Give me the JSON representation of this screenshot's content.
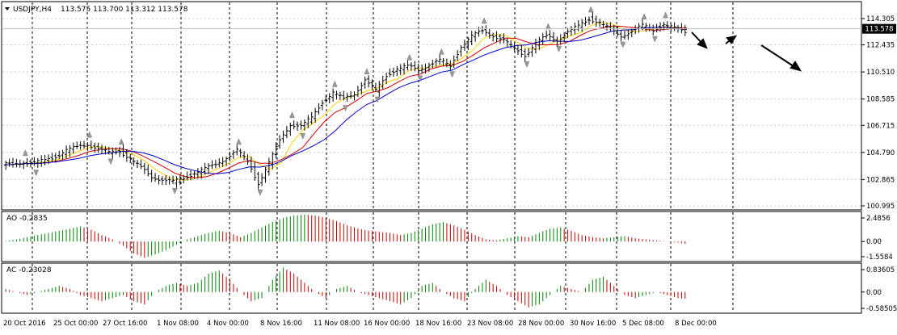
{
  "header": {
    "symbol_label": "USDJPY,H4",
    "ohlc_label": "113.575 113.700 113.312 113.578"
  },
  "panels": {
    "price": {
      "current_price_label": "113.578",
      "current_price": 113.578
    },
    "ao": {
      "label": "AO -0.2835",
      "value": -0.2835,
      "tick_labels": [
        "2.4856",
        "0.00",
        "-1.5584"
      ]
    },
    "ac": {
      "label": "AC -0.23028",
      "value": -0.23028,
      "tick_labels": [
        "0.83605",
        "0.00",
        "-0.58505"
      ]
    }
  },
  "colors": {
    "up_bar": "#008000",
    "down_bar": "#c00000",
    "ma_fast": "#ffd000",
    "ma_mid": "#d00000",
    "ma_slow": "#0000cc",
    "fractal": "#999999"
  },
  "chart_data": [
    {
      "type": "line",
      "title": "USDJPY,H4",
      "x_tick_labels": [
        "20 Oct 2016",
        "25 Oct 00:00",
        "27 Oct 16:00",
        "1 Nov 08:00",
        "4 Nov 00:00",
        "8 Nov 16:00",
        "11 Nov 08:00",
        "16 Nov 00:00",
        "18 Nov 16:00",
        "23 Nov 08:00",
        "28 Nov 00:00",
        "30 Nov 16:00",
        "5 Dec 08:00",
        "8 Dec 00:00"
      ],
      "y_tick_labels": [
        "114.305",
        "112.435",
        "110.510",
        "108.585",
        "106.715",
        "104.790",
        "102.865",
        "100.995"
      ],
      "ylim": [
        100.995,
        114.305
      ],
      "series": [
        {
          "name": "USDJPY",
          "values": [
            103.9,
            104.0,
            104.1,
            104.0,
            104.3,
            104.5,
            104.9,
            105.2,
            105.4,
            105.0,
            104.8,
            104.9,
            104.3,
            103.7,
            103.1,
            102.8,
            102.7,
            103.0,
            103.3,
            103.6,
            104.0,
            104.4,
            104.9,
            104.2,
            102.6,
            104.0,
            105.7,
            106.8,
            106.6,
            107.3,
            108.4,
            109.0,
            108.6,
            109.0,
            109.9,
            109.2,
            110.3,
            110.7,
            110.9,
            110.7,
            111.0,
            111.3,
            111.0,
            112.3,
            113.0,
            113.5,
            113.1,
            112.7,
            112.2,
            111.7,
            112.5,
            113.1,
            112.8,
            113.3,
            113.8,
            114.3,
            114.0,
            113.5,
            113.1,
            113.4,
            113.8,
            113.5,
            113.9,
            113.6,
            113.4
          ]
        }
      ]
    },
    {
      "type": "bar",
      "title": "AO -0.2835",
      "ylim": [
        -1.5584,
        2.4856
      ],
      "values": [
        0.05,
        0.2,
        0.4,
        0.6,
        0.8,
        1.0,
        1.2,
        1.4,
        1.1,
        0.6,
        0.2,
        -0.4,
        -1.1,
        -1.5,
        -1.2,
        -0.8,
        -0.3,
        0.2,
        0.5,
        0.8,
        1.0,
        0.8,
        0.4,
        0.8,
        1.3,
        1.8,
        2.2,
        2.4,
        2.5,
        2.4,
        2.2,
        1.9,
        1.5,
        1.2,
        1.0,
        0.9,
        0.8,
        0.6,
        0.8,
        1.2,
        1.6,
        1.8,
        1.5,
        1.1,
        0.6,
        0.2,
        0.1,
        0.3,
        0.5,
        0.4,
        0.8,
        1.2,
        1.3,
        1.0,
        0.6,
        0.4,
        0.3,
        0.4,
        0.5,
        0.3,
        0.2,
        0.1,
        0.0,
        -0.1,
        -0.28
      ]
    },
    {
      "type": "bar",
      "title": "AC -0.23028",
      "ylim": [
        -0.58505,
        0.83605
      ],
      "values": [
        0.1,
        0.0,
        -0.1,
        0.0,
        0.1,
        0.2,
        0.1,
        -0.1,
        -0.2,
        -0.3,
        -0.2,
        -0.1,
        -0.3,
        -0.4,
        0.0,
        0.2,
        0.3,
        0.2,
        0.3,
        0.6,
        0.7,
        0.4,
        0.0,
        -0.3,
        -0.2,
        0.4,
        0.8,
        0.6,
        0.3,
        0.0,
        -0.2,
        0.1,
        0.2,
        0.0,
        -0.1,
        -0.2,
        -0.3,
        -0.4,
        -0.2,
        0.2,
        0.3,
        0.0,
        -0.2,
        -0.3,
        0.1,
        0.4,
        0.2,
        -0.1,
        -0.3,
        -0.5,
        -0.4,
        -0.1,
        0.2,
        0.1,
        0.0,
        0.4,
        0.5,
        0.2,
        -0.1,
        -0.2,
        -0.1,
        0.0,
        -0.1,
        -0.2,
        -0.23
      ]
    }
  ]
}
